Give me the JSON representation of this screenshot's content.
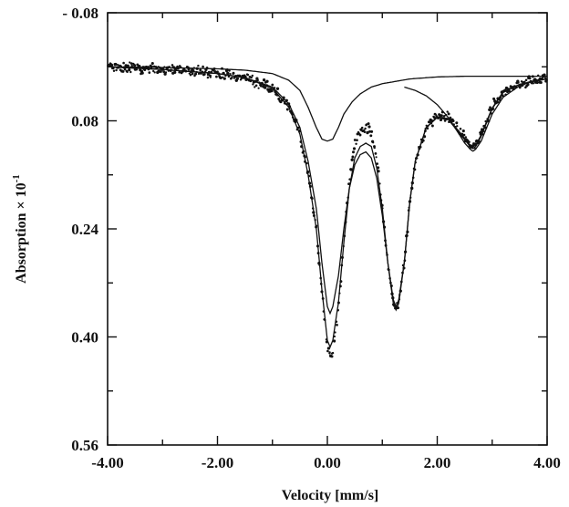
{
  "chart_data": {
    "type": "scatter",
    "title": "",
    "xlabel": "Velocity [mm/s]",
    "ylabel": "Absorption × 10",
    "ylabel_superscript": "-1",
    "xlim": [
      -4.0,
      4.0
    ],
    "ylim": [
      -0.08,
      0.56
    ],
    "y_inverted": true,
    "grid": false,
    "legend": "none",
    "x_tick_labels": [
      "-4.00",
      "-2.00",
      "0.00",
      "2.00",
      "4.00"
    ],
    "y_tick_labels": [
      "- 0.08",
      "0.08",
      "0.24",
      "0.40",
      "0.56"
    ],
    "series": [
      {
        "type": "scatter",
        "x": [
          -4.0,
          -3.5,
          -3.0,
          -2.5,
          -2.0,
          -1.5,
          -1.0,
          -0.7,
          -0.5,
          -0.35,
          -0.2,
          -0.1,
          0.0,
          0.05,
          0.1,
          0.2,
          0.3,
          0.4,
          0.5,
          0.6,
          0.7,
          0.75,
          0.8,
          0.9,
          1.0,
          1.1,
          1.2,
          1.25,
          1.3,
          1.4,
          1.5,
          1.6,
          1.8,
          2.0,
          2.2,
          2.4,
          2.6,
          2.65,
          2.7,
          2.8,
          3.0,
          3.2,
          3.5,
          3.8,
          4.0
        ],
        "y": [
          0.0,
          0.002,
          0.004,
          0.006,
          0.01,
          0.016,
          0.032,
          0.06,
          0.1,
          0.16,
          0.24,
          0.33,
          0.42,
          0.43,
          0.42,
          0.36,
          0.26,
          0.17,
          0.115,
          0.095,
          0.09,
          0.092,
          0.1,
          0.14,
          0.21,
          0.29,
          0.35,
          0.36,
          0.35,
          0.29,
          0.2,
          0.14,
          0.09,
          0.072,
          0.075,
          0.095,
          0.115,
          0.118,
          0.115,
          0.1,
          0.06,
          0.036,
          0.025,
          0.02,
          0.018
        ]
      },
      {
        "type": "line",
        "name": "",
        "x": [
          -4.0,
          -3.0,
          -2.0,
          -1.5,
          -1.0,
          -0.7,
          -0.5,
          -0.35,
          -0.2,
          -0.1,
          0.0,
          0.05,
          0.1,
          0.2,
          0.3,
          0.4,
          0.5,
          0.6,
          0.7,
          0.8,
          0.9,
          1.0,
          1.1,
          1.2,
          1.25,
          1.3,
          1.4,
          1.5,
          1.6,
          1.8,
          2.0,
          2.2,
          2.4,
          2.6,
          2.65,
          2.7,
          2.8,
          3.0,
          3.2,
          3.5,
          3.8,
          4.0
        ],
        "y": [
          0.0,
          0.004,
          0.01,
          0.016,
          0.032,
          0.06,
          0.1,
          0.16,
          0.24,
          0.33,
          0.405,
          0.415,
          0.405,
          0.35,
          0.26,
          0.18,
          0.135,
          0.118,
          0.113,
          0.118,
          0.15,
          0.21,
          0.29,
          0.35,
          0.36,
          0.35,
          0.29,
          0.2,
          0.14,
          0.09,
          0.075,
          0.078,
          0.098,
          0.118,
          0.121,
          0.118,
          0.103,
          0.062,
          0.038,
          0.026,
          0.021,
          0.018
        ]
      },
      {
        "type": "line",
        "name": "",
        "x": [
          -4.0,
          -3.0,
          -2.0,
          -1.5,
          -1.0,
          -0.7,
          -0.5,
          -0.35,
          -0.2,
          -0.1,
          0.0,
          0.05,
          0.1,
          0.2,
          0.3,
          0.4,
          0.5,
          0.6,
          0.7,
          0.8,
          0.9,
          1.0,
          1.1,
          1.2,
          1.25,
          1.3,
          1.4,
          1.5,
          1.6,
          1.8,
          2.0,
          2.2,
          2.4,
          2.6,
          2.65,
          2.7,
          2.8,
          3.0,
          3.2,
          3.5,
          3.8,
          4.0
        ],
        "y": [
          0.0,
          0.004,
          0.01,
          0.016,
          0.03,
          0.055,
          0.09,
          0.14,
          0.21,
          0.29,
          0.355,
          0.365,
          0.355,
          0.31,
          0.24,
          0.18,
          0.145,
          0.13,
          0.126,
          0.135,
          0.165,
          0.22,
          0.29,
          0.345,
          0.355,
          0.345,
          0.29,
          0.2,
          0.14,
          0.09,
          0.074,
          0.077,
          0.096,
          0.116,
          0.118,
          0.116,
          0.101,
          0.061,
          0.037,
          0.026,
          0.02,
          0.018
        ]
      },
      {
        "type": "line",
        "name": "",
        "x": [
          -4.0,
          -3.0,
          -2.0,
          -1.5,
          -1.0,
          -0.7,
          -0.5,
          -0.35,
          -0.2,
          -0.1,
          0.0,
          0.1,
          0.2,
          0.3,
          0.45,
          0.6,
          0.8,
          1.0,
          1.5,
          2.0,
          2.5,
          3.0,
          3.5,
          4.0
        ],
        "y": [
          0.0,
          0.001,
          0.003,
          0.005,
          0.01,
          0.02,
          0.035,
          0.06,
          0.09,
          0.107,
          0.11,
          0.107,
          0.09,
          0.07,
          0.052,
          0.04,
          0.03,
          0.025,
          0.018,
          0.015,
          0.014,
          0.014,
          0.014,
          0.014
        ]
      },
      {
        "type": "line",
        "name": "",
        "x": [
          1.4,
          1.6,
          1.8,
          2.0,
          2.2,
          2.4,
          2.5,
          2.6,
          2.65,
          2.7,
          2.8,
          2.9,
          3.0,
          3.2,
          3.5,
          3.8
        ],
        "y": [
          0.03,
          0.035,
          0.043,
          0.056,
          0.075,
          0.1,
          0.113,
          0.122,
          0.125,
          0.122,
          0.11,
          0.09,
          0.07,
          0.045,
          0.028,
          0.02
        ]
      }
    ]
  }
}
